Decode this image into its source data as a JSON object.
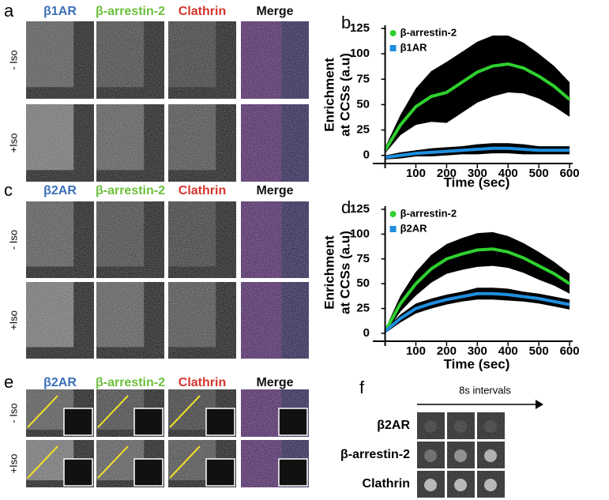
{
  "panels": {
    "a": {
      "letter": "a",
      "columns": [
        "β1AR",
        "β-arrestin-2",
        "Clathrin",
        "Merge"
      ],
      "column_colors": [
        "#3b6fb6",
        "#6cbf3c",
        "#d2352c",
        "#111111"
      ],
      "rows": [
        "- Iso",
        "+Iso"
      ]
    },
    "c": {
      "letter": "c",
      "columns": [
        "β2AR",
        "β-arrestin-2",
        "Clathrin",
        "Merge"
      ],
      "column_colors": [
        "#3b6fb6",
        "#6cbf3c",
        "#d2352c",
        "#111111"
      ],
      "rows": [
        "- Iso",
        "+Iso"
      ]
    },
    "e": {
      "letter": "e",
      "columns": [
        "β2AR",
        "β-arrestin-2",
        "Clathrin",
        "Merge"
      ],
      "column_colors": [
        "#3b6fb6",
        "#6cbf3c",
        "#d2352c",
        "#111111"
      ],
      "rows": [
        "- Iso",
        "+Iso"
      ]
    },
    "f": {
      "letter": "f",
      "caption": "8s intervals",
      "rows": [
        "β2AR",
        "β-arrestin-2",
        "Clathrin"
      ]
    }
  },
  "chart_data": [
    {
      "type": "line",
      "panel_label": "b",
      "x_label": "Time (sec)",
      "y_label": [
        "Enrichment",
        "at CCSs (a.u)"
      ],
      "x": [
        0,
        50,
        100,
        150,
        200,
        250,
        300,
        350,
        400,
        450,
        500,
        550,
        600
      ],
      "xlim": [
        -40,
        610
      ],
      "xticks": [
        100,
        200,
        300,
        400,
        500,
        600
      ],
      "ylim": [
        -8,
        125
      ],
      "yticks": [
        0,
        25,
        50,
        75,
        100,
        125
      ],
      "legend": "upper left",
      "band_color": "#000000",
      "series": [
        {
          "name": "β-arrestin-2",
          "color": "#2fd12f",
          "marker": "circle",
          "values": [
            5,
            30,
            48,
            58,
            62,
            72,
            82,
            88,
            90,
            86,
            78,
            68,
            55
          ],
          "errors": [
            3,
            10,
            18,
            25,
            30,
            30,
            30,
            30,
            28,
            25,
            22,
            20,
            17
          ]
        },
        {
          "name": "β1AR",
          "color": "#1f8fe0",
          "marker": "square",
          "values": [
            -2,
            0,
            2,
            3,
            4,
            5,
            6,
            7,
            7,
            6,
            5,
            5,
            5
          ],
          "errors": [
            2,
            3,
            3,
            4,
            4,
            4,
            5,
            5,
            5,
            5,
            4,
            4,
            4
          ]
        }
      ]
    },
    {
      "type": "line",
      "panel_label": "d",
      "x_label": "Time (sec)",
      "y_label": [
        "Enrichment",
        "at CCSs (a.u)"
      ],
      "x": [
        0,
        50,
        100,
        150,
        200,
        250,
        300,
        350,
        400,
        450,
        500,
        550,
        600
      ],
      "xlim": [
        -40,
        610
      ],
      "xticks": [
        100,
        200,
        300,
        400,
        500,
        600
      ],
      "ylim": [
        -8,
        125
      ],
      "yticks": [
        0,
        25,
        50,
        75,
        100,
        125
      ],
      "legend": "upper left",
      "band_color": "#000000",
      "series": [
        {
          "name": "β-arrestin-2",
          "color": "#2fd12f",
          "marker": "circle",
          "values": [
            2,
            30,
            50,
            65,
            75,
            80,
            84,
            85,
            82,
            76,
            68,
            60,
            50
          ],
          "errors": [
            2,
            8,
            12,
            14,
            15,
            16,
            17,
            17,
            16,
            15,
            14,
            12,
            10
          ]
        },
        {
          "name": "β2AR",
          "color": "#1f8fe0",
          "marker": "square",
          "values": [
            2,
            15,
            25,
            30,
            34,
            37,
            40,
            40,
            39,
            37,
            35,
            32,
            29
          ],
          "errors": [
            2,
            4,
            5,
            5,
            5,
            5,
            6,
            6,
            6,
            5,
            5,
            5,
            5
          ]
        }
      ]
    }
  ]
}
